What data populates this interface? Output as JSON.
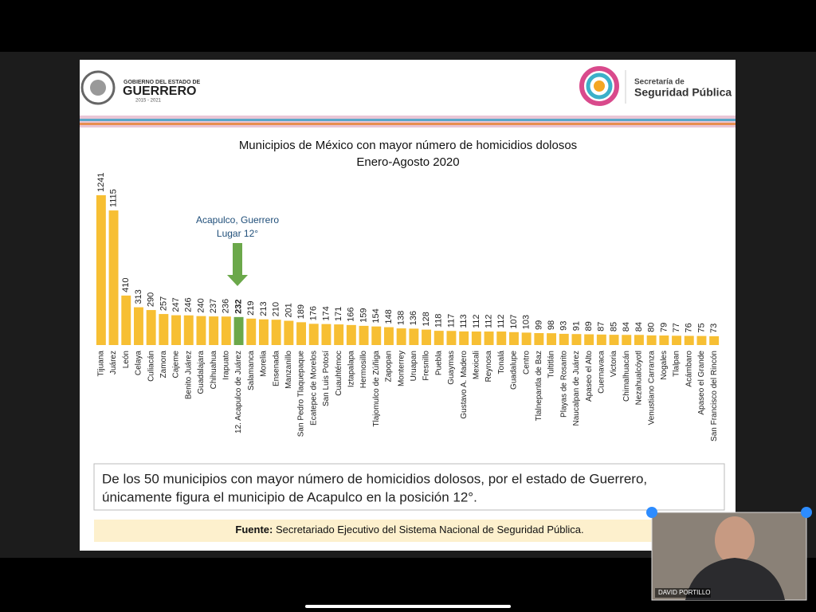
{
  "header": {
    "gov_line1": "GOBIERNO DEL ESTADO DE",
    "gov_name": "GUERRERO",
    "gov_years": "2015 - 2021",
    "ssp_line1": "Secretaría de",
    "ssp_line2": "Seguridad Pública"
  },
  "chart_data": {
    "type": "bar",
    "title": "Municipios de México con mayor número de homicidios dolosos",
    "subtitle": "Enero-Agosto 2020",
    "categories": [
      "Tijuana",
      "Juárez",
      "León",
      "Celaya",
      "Culiacán",
      "Zamora",
      "Cajeme",
      "Benito Juárez",
      "Guadalajara",
      "Chihuahua",
      "Irapuato",
      "12. Acapulco de Juárez",
      "Salamanca",
      "Morelia",
      "Ensenada",
      "Manzanillo",
      "San Pedro Tlaquepaque",
      "Ecatepec de Morelos",
      "San Luis Potosí",
      "Cuauhtémoc",
      "Iztapalapa",
      "Hermosillo",
      "Tlajomulco de Zúñiga",
      "Zapopan",
      "Monterrey",
      "Uruapan",
      "Fresnillo",
      "Puebla",
      "Guaymas",
      "Gustavo A. Madero",
      "Mexicali",
      "Reynosa",
      "Tonalá",
      "Guadalupe",
      "Centro",
      "Tlalnepantla de Baz",
      "Tultitlán",
      "Playas de Rosarito",
      "Naucalpan de Juárez",
      "Apaseo el Alto",
      "Cuernavaca",
      "Victoria",
      "Chimalhuacán",
      "Nezahualcóyotl",
      "Venustiano Carranza",
      "Nogales",
      "Tlalpan",
      "Acámbaro",
      "Apaseo el Grande",
      "San Francisco del Rincón"
    ],
    "values": [
      1241,
      1115,
      410,
      313,
      290,
      257,
      247,
      246,
      240,
      237,
      236,
      232,
      219,
      213,
      210,
      201,
      189,
      176,
      174,
      171,
      166,
      159,
      154,
      148,
      138,
      136,
      128,
      118,
      117,
      113,
      112,
      112,
      112,
      107,
      103,
      99,
      98,
      93,
      91,
      89,
      87,
      85,
      84,
      84,
      80,
      79,
      77,
      76,
      75,
      73
    ],
    "colors": [
      "#f7bf33",
      "#f7bf33",
      "#f7bf33",
      "#f7bf33",
      "#f7bf33",
      "#f7bf33",
      "#f7bf33",
      "#f7bf33",
      "#f7bf33",
      "#f7bf33",
      "#f7bf33",
      "#6ba84a",
      "#f7bf33",
      "#f7bf33",
      "#f7bf33",
      "#f7bf33",
      "#f7bf33",
      "#f7bf33",
      "#f7bf33",
      "#f7bf33",
      "#f7bf33",
      "#f7bf33",
      "#f7bf33",
      "#f7bf33",
      "#f7bf33",
      "#f7bf33",
      "#f7bf33",
      "#f7bf33",
      "#f7bf33",
      "#f7bf33",
      "#f7bf33",
      "#f7bf33",
      "#f7bf33",
      "#f7bf33",
      "#f7bf33",
      "#f7bf33",
      "#f7bf33",
      "#f7bf33",
      "#f7bf33",
      "#f7bf33",
      "#f7bf33",
      "#f7bf33",
      "#f7bf33",
      "#f7bf33",
      "#f7bf33",
      "#f7bf33",
      "#f7bf33",
      "#f7bf33",
      "#f7bf33",
      "#f7bf33"
    ],
    "annotation": [
      "Acapulco, Guerrero",
      "Lugar 12°"
    ]
  },
  "note": {
    "lines": [
      "De los 50 municipios con mayor número de homicidios dolosos, por el estado de Guerrero,",
      "únicamente figura el municipio de Acapulco en la posición 12°."
    ]
  },
  "source": {
    "label": "Fuente:",
    "text": " Secretariado Ejecutivo del Sistema Nacional de Seguridad Pública."
  },
  "video": {
    "name": "DAVID PORTILLO"
  }
}
